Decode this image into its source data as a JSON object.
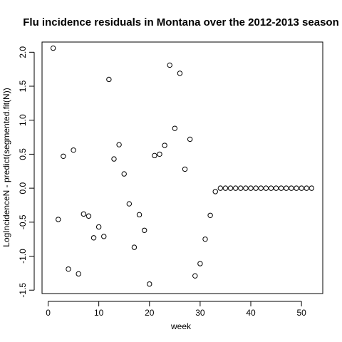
{
  "chart_data": {
    "type": "scatter",
    "title": "Flu incidence residuals in Montana over the 2012-2013 season",
    "xlabel": "week",
    "ylabel": "LogIncidenceN - predict(segmented.fit(N))",
    "xlim": [
      -1.2,
      54.2
    ],
    "ylim": [
      -1.55,
      2.15
    ],
    "x_ticks": [
      0,
      10,
      20,
      30,
      40,
      50
    ],
    "x_tick_labels": [
      "0",
      "10",
      "20",
      "30",
      "40",
      "50"
    ],
    "y_ticks": [
      -1.5,
      -1.0,
      -0.5,
      0.0,
      0.5,
      1.0,
      1.5,
      2.0
    ],
    "y_tick_labels": [
      "-1.5",
      "-1.0",
      "-0.5",
      "0.0",
      "0.5",
      "1.0",
      "1.5",
      "2.0"
    ],
    "grid": false,
    "legend": "none",
    "marker": "open-circle",
    "colors": {
      "marker": "#000000",
      "axis": "#000000",
      "background": "#ffffff"
    },
    "x": [
      1,
      2,
      3,
      4,
      5,
      6,
      7,
      8,
      9,
      10,
      11,
      12,
      13,
      14,
      15,
      16,
      17,
      18,
      19,
      20,
      21,
      22,
      23,
      24,
      25,
      26,
      27,
      28,
      29,
      30,
      31,
      32,
      33,
      34,
      35,
      36,
      37,
      38,
      39,
      40,
      41,
      42,
      43,
      44,
      45,
      46,
      47,
      48,
      49,
      50,
      51,
      52
    ],
    "y": [
      2.06,
      -0.46,
      0.47,
      -1.19,
      0.56,
      -1.26,
      -0.38,
      -0.41,
      -0.73,
      -0.57,
      -0.71,
      1.6,
      0.43,
      0.64,
      0.21,
      -0.23,
      -0.87,
      -0.39,
      -0.62,
      -1.41,
      0.48,
      0.5,
      0.63,
      1.81,
      0.88,
      1.69,
      0.28,
      0.72,
      -1.29,
      -1.11,
      -0.75,
      -0.4,
      -0.05,
      0.0,
      0.0,
      0.0,
      0.0,
      0.0,
      0.0,
      0.0,
      0.0,
      0.0,
      0.0,
      0.0,
      0.0,
      0.0,
      0.0,
      0.0,
      0.0,
      0.0,
      0.0,
      0.0
    ]
  }
}
